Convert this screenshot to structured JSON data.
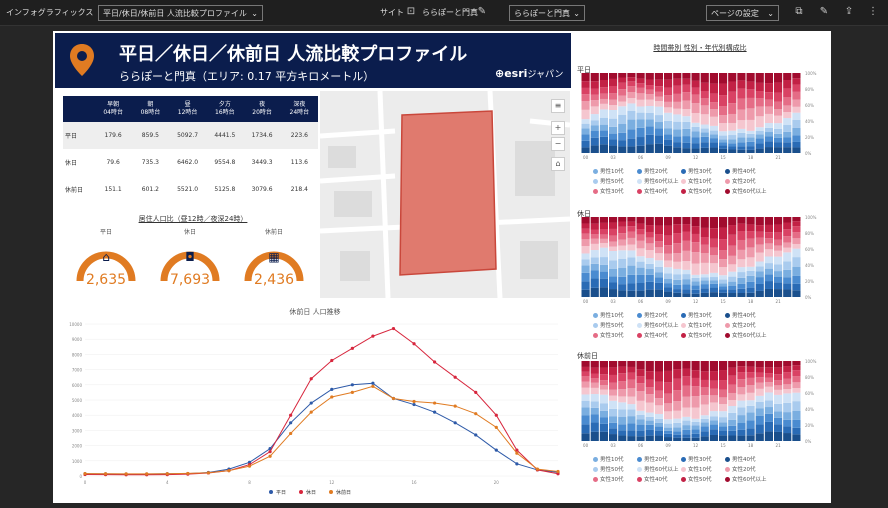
{
  "topbar": {
    "app_name": "インフォグラフィックス",
    "profile_select": "平日/休日/休前日 人流比較プロファイル",
    "site_label": "サイト",
    "site_name": "ららぽーと門真",
    "area_select": "ららぽーと門真",
    "page_setting": "ページの設定"
  },
  "header": {
    "title": "平日／休日／休前日 人流比較プロファイル",
    "subtitle": "ららぽーと門真（エリア: 0.17 平方キロメートル）",
    "brand": "esri",
    "brand_sub": "ジャパン"
  },
  "table": {
    "headers": [
      "",
      "早朝\n04時台",
      "朝\n08時台",
      "昼\n12時台",
      "夕方\n16時台",
      "夜\n20時台",
      "深夜\n24時台"
    ],
    "rows": [
      [
        "平日",
        "179.6",
        "859.5",
        "5092.7",
        "4441.5",
        "1734.6",
        "223.6"
      ],
      [
        "休日",
        "79.6",
        "735.3",
        "6462.0",
        "9554.8",
        "3449.3",
        "113.6"
      ],
      [
        "休前日",
        "151.1",
        "601.2",
        "5521.0",
        "5125.8",
        "3079.6",
        "218.4"
      ]
    ]
  },
  "resident": {
    "title": "居住人口比（昼12時／夜深24時）",
    "gauges": [
      {
        "label": "平日",
        "value": "2,635",
        "icon": "building-icon"
      },
      {
        "label": "休日",
        "value": "7,693",
        "icon": "bag-icon"
      },
      {
        "label": "休前日",
        "value": "2,436",
        "icon": "calendar-icon"
      }
    ]
  },
  "line_chart": {
    "title": "休前日 人口推移",
    "legend": [
      "平日",
      "休日",
      "休前日"
    ]
  },
  "side": {
    "title": "時間帯別 性別・年代別構成比",
    "charts": [
      {
        "label": "平日"
      },
      {
        "label": "休日"
      },
      {
        "label": "休前日"
      }
    ],
    "legend": [
      "男性10代",
      "男性20代",
      "男性30代",
      "男性40代",
      "男性50代",
      "男性60代以上",
      "女性10代",
      "女性20代",
      "女性30代",
      "女性40代",
      "女性50代",
      "女性60代以上"
    ]
  },
  "colors": {
    "navy": "#0b1d4d",
    "orange": "#e07b22",
    "red": "#d7263d",
    "blue": "#2e5aa8"
  },
  "chart_data": [
    {
      "type": "line",
      "title": "休前日 人口推移",
      "x": [
        "0",
        "1",
        "2",
        "3",
        "4",
        "5",
        "6",
        "7",
        "8",
        "9",
        "10",
        "11",
        "12",
        "13",
        "14",
        "15",
        "16",
        "17",
        "18",
        "19",
        "20",
        "21",
        "22",
        "23"
      ],
      "ylim": [
        0,
        10000
      ],
      "yticks": [
        "0",
        "1000",
        "2000",
        "3000",
        "4000",
        "5000",
        "6000",
        "7000",
        "8000",
        "9000",
        "10000"
      ],
      "series": [
        {
          "name": "平日",
          "color": "#2e5aa8",
          "values": [
            150,
            140,
            130,
            130,
            150,
            160,
            230,
            450,
            900,
            1800,
            3500,
            4800,
            5700,
            6000,
            6100,
            5100,
            4700,
            4200,
            3500,
            2700,
            1700,
            800,
            400,
            250
          ]
        },
        {
          "name": "休日",
          "color": "#d7263d",
          "values": [
            100,
            90,
            80,
            80,
            90,
            120,
            200,
            350,
            750,
            1600,
            4000,
            6400,
            7600,
            8400,
            9200,
            9700,
            8700,
            7500,
            6500,
            5500,
            4000,
            1700,
            400,
            150
          ]
        },
        {
          "name": "休前日",
          "color": "#e07b22",
          "values": [
            160,
            150,
            140,
            140,
            150,
            170,
            210,
            350,
            650,
            1300,
            2800,
            4200,
            5200,
            5500,
            5900,
            5100,
            4900,
            4800,
            4600,
            4100,
            3200,
            1500,
            450,
            300
          ]
        }
      ]
    },
    {
      "type": "bar",
      "title": "平日",
      "stacked": true,
      "percent": true
    },
    {
      "type": "bar",
      "title": "休日",
      "stacked": true,
      "percent": true
    },
    {
      "type": "bar",
      "title": "休前日",
      "stacked": true,
      "percent": true
    }
  ]
}
